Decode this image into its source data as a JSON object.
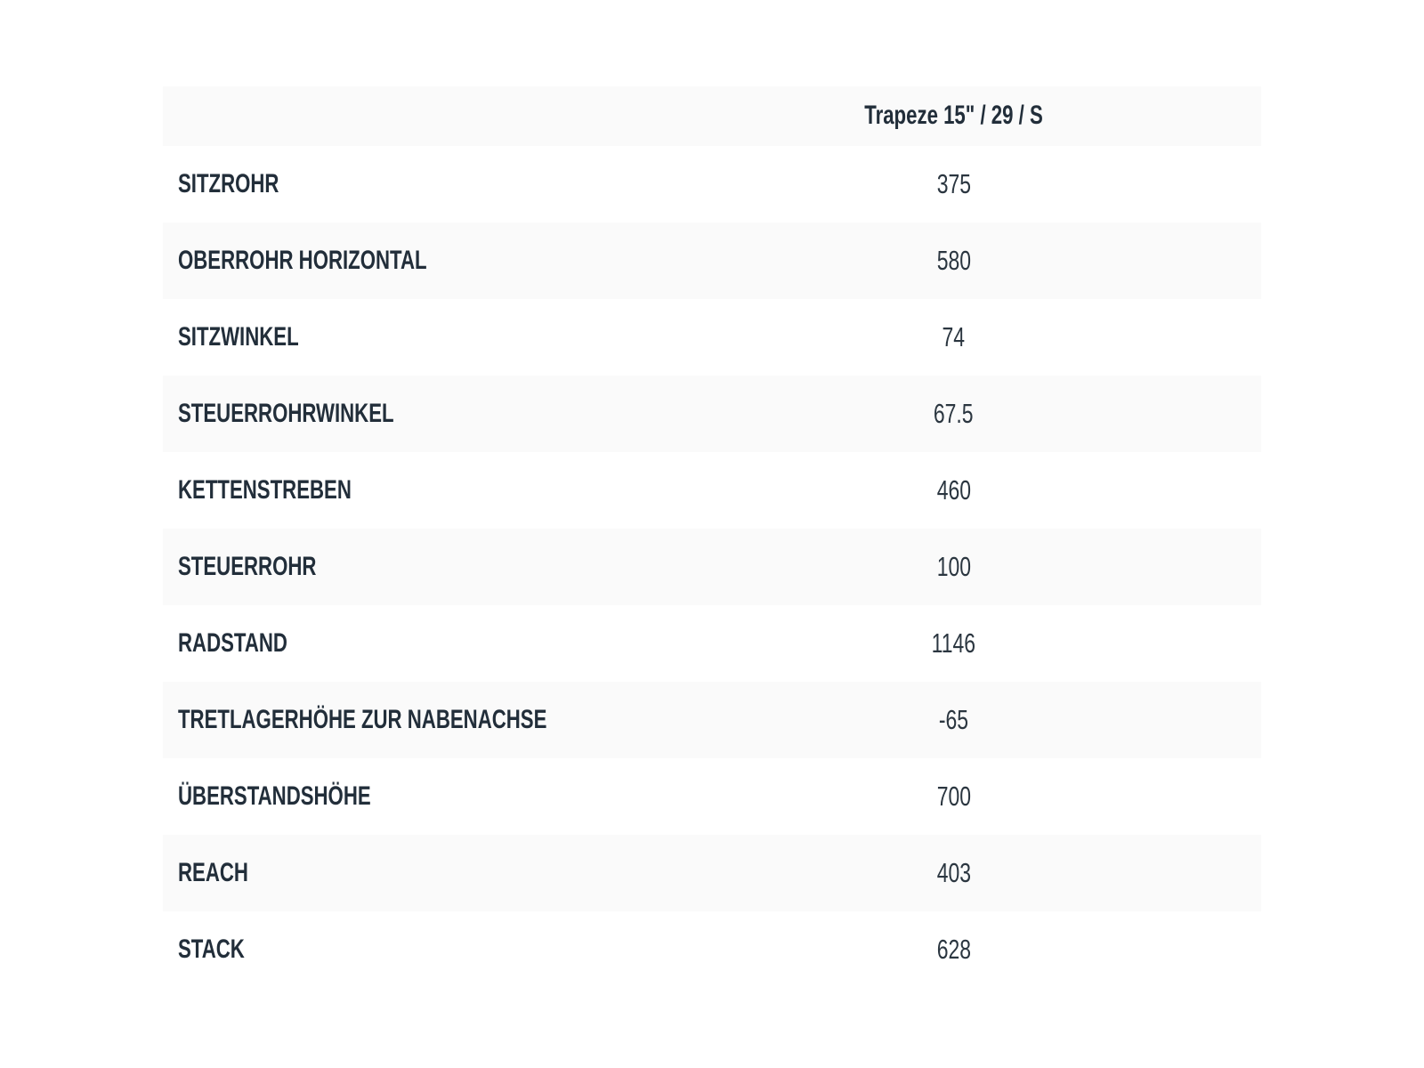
{
  "table": {
    "title": "geometry-table",
    "column_header": "Trapeze 15\" / 29 / S",
    "rows": [
      {
        "label": "SITZROHR",
        "value": "375"
      },
      {
        "label": "OBERROHR HORIZONTAL",
        "value": "580"
      },
      {
        "label": "SITZWINKEL",
        "value": "74"
      },
      {
        "label": "STEUERROHRWINKEL",
        "value": "67.5"
      },
      {
        "label": "KETTENSTREBEN",
        "value": "460"
      },
      {
        "label": "STEUERROHR",
        "value": "100"
      },
      {
        "label": "RADSTAND",
        "value": "1146"
      },
      {
        "label": "TRETLAGERHÖHE ZUR NABENACHSE",
        "value": "-65"
      },
      {
        "label": "ÜBERSTANDSHÖHE",
        "value": "700"
      },
      {
        "label": "REACH",
        "value": "403"
      },
      {
        "label": "STACK",
        "value": "628"
      }
    ],
    "colors": {
      "stripe_bg": "#fafafa",
      "row_bg": "#ffffff",
      "text": "#222e3a",
      "value_text": "#2b3640"
    }
  }
}
